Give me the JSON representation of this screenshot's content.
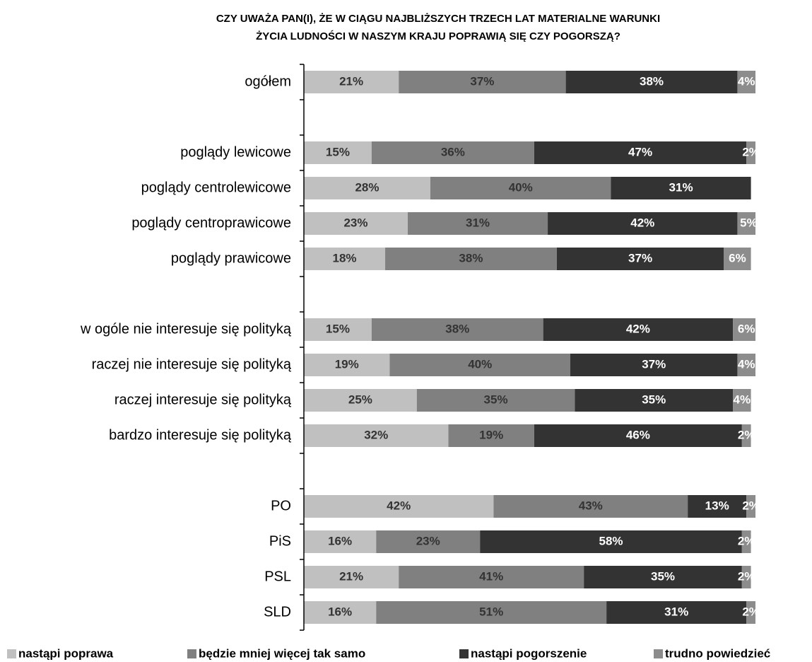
{
  "chart_data": {
    "type": "stacked-barh",
    "title": [
      "CZY UWAŻA PAN(I), ŻE W CIĄGU NAJBLIŻSZYCH TRZECH LAT MATERIALNE WARUNKI",
      "ŻYCIA LUDNOŚCI W NASZYM KRAJU POPRAWIĄ SIĘ CZY POGORSZĄ?"
    ],
    "categories": [
      "ogółem",
      null,
      "poglądy lewicowe",
      "poglądy centrolewicowe",
      "poglądy centroprawicowe",
      "poglądy prawicowe",
      null,
      "w ogóle nie interesuje się polityką",
      "raczej nie interesuje się polityką",
      "raczej interesuje się polityką",
      "bardzo interesuje się polityką",
      null,
      "PO",
      "PiS",
      "PSL",
      "SLD"
    ],
    "xlim": [
      0,
      100
    ],
    "series": [
      {
        "name": "nastąpi poprawa",
        "color": "#c0c0c0",
        "label_color": "#333333",
        "values": [
          21,
          null,
          15,
          28,
          23,
          18,
          null,
          15,
          19,
          25,
          32,
          null,
          42,
          16,
          21,
          16
        ],
        "value_labels": [
          "21%",
          null,
          "15%",
          "28%",
          "23%",
          "18%",
          null,
          "15%",
          "19%",
          "25%",
          "32%",
          null,
          "42%",
          "16%",
          "21%",
          "16%"
        ]
      },
      {
        "name": "będzie mniej więcej tak samo",
        "color": "#808080",
        "label_color": "#333333",
        "values": [
          37,
          null,
          36,
          40,
          31,
          38,
          null,
          38,
          40,
          35,
          19,
          null,
          43,
          23,
          41,
          51
        ],
        "value_labels": [
          "37%",
          null,
          "36%",
          "40%",
          "31%",
          "38%",
          null,
          "38%",
          "40%",
          "35%",
          "19%",
          null,
          "43%",
          "23%",
          "41%",
          "51%"
        ]
      },
      {
        "name": "nastąpi pogorszenie",
        "color": "#333333",
        "label_color": "#ffffff",
        "values": [
          38,
          null,
          47,
          31,
          42,
          37,
          null,
          42,
          37,
          35,
          46,
          null,
          13,
          58,
          35,
          31
        ],
        "value_labels": [
          "38%",
          null,
          "47%",
          "31%",
          "42%",
          "37%",
          null,
          "42%",
          "37%",
          "35%",
          "46%",
          null,
          "13%",
          "58%",
          "35%",
          "31%"
        ]
      },
      {
        "name": "trudno powiedzieć",
        "color": "#8c8c8c",
        "label_color": "#ffffff",
        "values": [
          4,
          null,
          2,
          null,
          5,
          6,
          null,
          6,
          4,
          4,
          2,
          null,
          2,
          2,
          2,
          2
        ],
        "value_labels": [
          "4%",
          null,
          "2%",
          null,
          "5%",
          "6%",
          null,
          "6%",
          "4%",
          "4%",
          "2%",
          null,
          "2%",
          "2%",
          "2%",
          "2%"
        ]
      }
    ]
  }
}
